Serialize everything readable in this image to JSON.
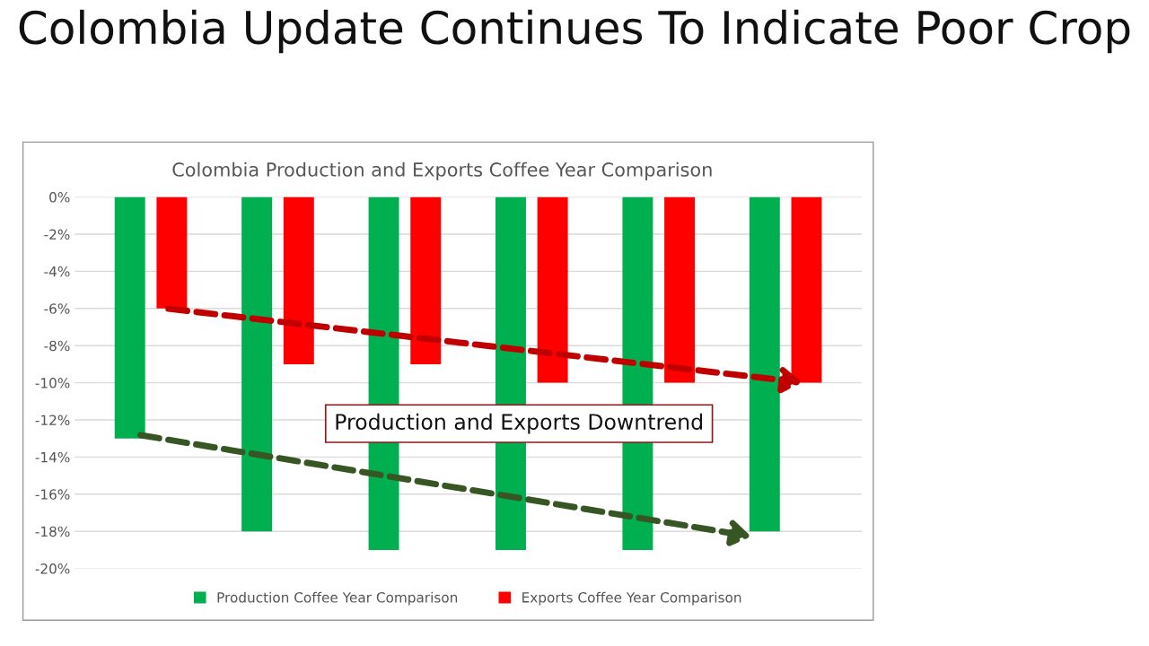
{
  "chart_data": {
    "type": "bar",
    "title": "Colombia Update Continues To Indicate Poor Crop",
    "subtitle": "Colombia Production and Exports Coffee Year Comparison",
    "categories": [
      null,
      null,
      null,
      null,
      null,
      null
    ],
    "series": [
      {
        "name": "Production Coffee Year Comparison",
        "color": "#00b050",
        "values": [
          -13,
          -18,
          -19,
          -19,
          -19,
          -18
        ]
      },
      {
        "name": "Exports Coffee Year Comparison",
        "color": "#ff0000",
        "values": [
          -6,
          -9,
          -9,
          -10,
          -10,
          -10
        ]
      }
    ],
    "ylim": [
      -20,
      0
    ],
    "yticks": [
      {
        "value": 0,
        "label": "0%"
      },
      {
        "value": -2,
        "label": "-2%"
      },
      {
        "value": -4,
        "label": "-4%"
      },
      {
        "value": -6,
        "label": "-6%"
      },
      {
        "value": -8,
        "label": "-8%"
      },
      {
        "value": -10,
        "label": "-10%"
      },
      {
        "value": -12,
        "label": "-12%"
      },
      {
        "value": -14,
        "label": "-14%"
      },
      {
        "value": -16,
        "label": "-16%"
      },
      {
        "value": -18,
        "label": "-18%"
      },
      {
        "value": -20,
        "label": "-20%"
      }
    ],
    "tick_labels": "y",
    "grid": "y",
    "legend": "bottom",
    "annotations": [
      "Production and Exports Downtrend"
    ]
  }
}
